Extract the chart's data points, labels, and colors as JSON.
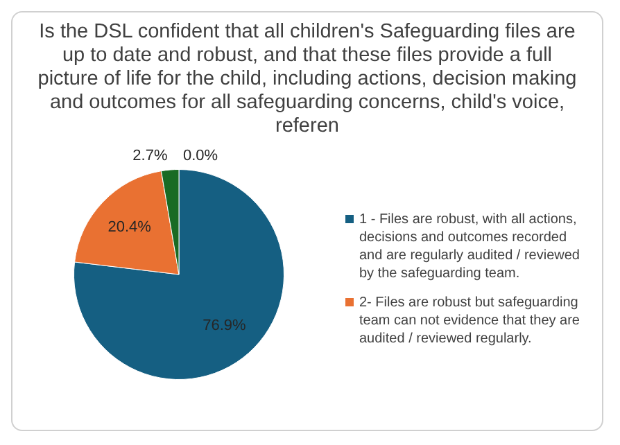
{
  "chart_data": {
    "type": "pie",
    "title": "Is the DSL confident that all children's Safeguarding files are up to date and robust, and that these files provide a full picture of life for the child, including actions, decision making and outcomes for all safeguarding concerns, child's voice, referen",
    "categories": [
      "1 - Files are robust, with all actions, decisions and outcomes recorded and are regularly audited / reviewed by the safeguarding team.",
      "2- Files are robust but safeguarding team can not evidence that they are audited / reviewed regularly.",
      null,
      null
    ],
    "values": [
      76.9,
      20.4,
      2.7,
      0.0
    ],
    "colors": [
      "#155f82",
      "#e97132",
      "#196b24",
      "#0f9ed5"
    ],
    "value_labels": [
      "76.9%",
      "20.4%",
      "2.7%",
      "0.0%"
    ],
    "legend": "right"
  }
}
